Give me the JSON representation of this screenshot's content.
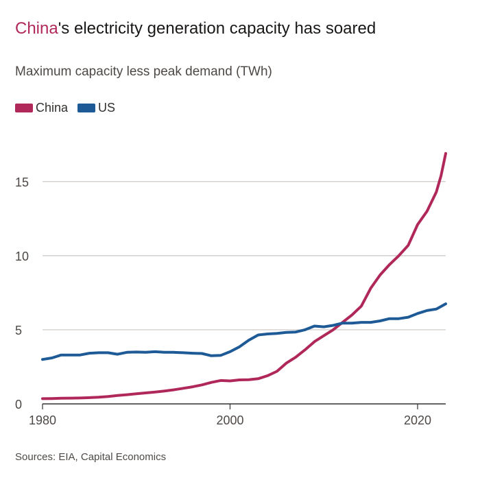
{
  "header": {
    "title_highlight": "China",
    "title_rest": "'s electricity generation capacity has soared",
    "subtitle": "Maximum capacity less peak demand (TWh)"
  },
  "legend": [
    {
      "label": "China",
      "color": "#b0285a"
    },
    {
      "label": "US",
      "color": "#1e5a96"
    }
  ],
  "footer": {
    "source": "Sources: EIA, Capital Economics"
  },
  "chart_data": {
    "type": "line",
    "title": "China's electricity generation capacity has soared",
    "subtitle": "Maximum capacity less peak demand (TWh)",
    "xlabel": "",
    "ylabel": "",
    "xlim": [
      1980,
      2023
    ],
    "ylim": [
      0,
      18
    ],
    "x_ticks": [
      1980,
      2000,
      2020
    ],
    "y_ticks": [
      0,
      5,
      10,
      15
    ],
    "grid": "horizontal",
    "legend_position": "top-left",
    "series": [
      {
        "name": "China",
        "color": "#b0285a",
        "x": [
          1980,
          1981,
          1982,
          1983,
          1984,
          1985,
          1986,
          1987,
          1988,
          1989,
          1990,
          1991,
          1992,
          1993,
          1994,
          1995,
          1996,
          1997,
          1998,
          1999,
          2000,
          2001,
          2002,
          2003,
          2004,
          2005,
          2006,
          2007,
          2008,
          2009,
          2010,
          2011,
          2012,
          2013,
          2014,
          2015,
          2016,
          2017,
          2018,
          2019,
          2020,
          2021,
          2022,
          2022.5,
          2023
        ],
        "values": [
          0.35,
          0.36,
          0.38,
          0.39,
          0.4,
          0.42,
          0.45,
          0.5,
          0.57,
          0.62,
          0.68,
          0.74,
          0.8,
          0.87,
          0.95,
          1.05,
          1.15,
          1.28,
          1.45,
          1.58,
          1.55,
          1.62,
          1.63,
          1.7,
          1.9,
          2.2,
          2.75,
          3.15,
          3.65,
          4.2,
          4.6,
          5.0,
          5.5,
          6.0,
          6.6,
          7.8,
          8.7,
          9.4,
          10.0,
          10.7,
          12.1,
          13.0,
          14.3,
          15.4,
          16.9
        ]
      },
      {
        "name": "US",
        "color": "#1e5a96",
        "x": [
          1980,
          1981,
          1982,
          1983,
          1984,
          1985,
          1986,
          1987,
          1988,
          1989,
          1990,
          1991,
          1992,
          1993,
          1994,
          1995,
          1996,
          1997,
          1998,
          1999,
          2000,
          2001,
          2002,
          2003,
          2004,
          2005,
          2006,
          2007,
          2008,
          2009,
          2010,
          2011,
          2012,
          2013,
          2014,
          2015,
          2016,
          2017,
          2018,
          2019,
          2020,
          2021,
          2022,
          2023
        ],
        "values": [
          3.0,
          3.1,
          3.3,
          3.3,
          3.3,
          3.42,
          3.45,
          3.45,
          3.35,
          3.48,
          3.5,
          3.48,
          3.52,
          3.48,
          3.48,
          3.45,
          3.42,
          3.4,
          3.25,
          3.27,
          3.52,
          3.85,
          4.3,
          4.65,
          4.72,
          4.75,
          4.82,
          4.85,
          5.0,
          5.25,
          5.2,
          5.3,
          5.45,
          5.45,
          5.5,
          5.5,
          5.6,
          5.75,
          5.75,
          5.85,
          6.1,
          6.3,
          6.4,
          6.75
        ]
      }
    ]
  }
}
